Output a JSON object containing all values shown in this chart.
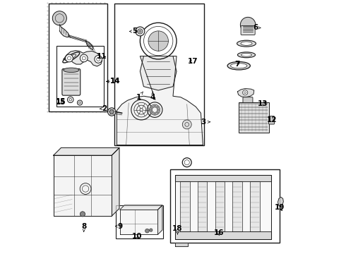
{
  "bg_color": "#ffffff",
  "line_color": "#1a1a1a",
  "dot_color": "#aaaaaa",
  "label_fontsize": 7.5,
  "arrow_lw": 0.5,
  "parts_lw": 0.7,
  "fig_width": 4.9,
  "fig_height": 3.6,
  "dpi": 100,
  "labels": {
    "1": [
      0.365,
      0.618,
      0.382,
      0.64
    ],
    "2": [
      0.23,
      0.572,
      0.21,
      0.572
    ],
    "3": [
      0.62,
      0.52,
      0.648,
      0.52
    ],
    "4": [
      0.42,
      0.618,
      0.42,
      0.64
    ],
    "5": [
      0.35,
      0.878,
      0.326,
      0.878
    ],
    "6": [
      0.826,
      0.892,
      0.848,
      0.892
    ],
    "7": [
      0.754,
      0.748,
      0.77,
      0.762
    ],
    "8": [
      0.148,
      0.108,
      0.148,
      0.085
    ],
    "9": [
      0.292,
      0.108,
      0.27,
      0.108
    ],
    "10": [
      0.358,
      0.068,
      0.37,
      0.05
    ],
    "11": [
      0.218,
      0.778,
      0.244,
      0.778
    ],
    "12": [
      0.89,
      0.528,
      0.912,
      0.528
    ],
    "13": [
      0.854,
      0.592,
      0.876,
      0.606
    ],
    "14": [
      0.248,
      0.668,
      0.272,
      0.668
    ],
    "15": [
      0.075,
      0.618,
      0.058,
      0.605
    ],
    "16": [
      0.682,
      0.082,
      0.682,
      0.062
    ],
    "17": [
      0.578,
      0.76,
      0.555,
      0.76
    ],
    "18": [
      0.518,
      0.098,
      0.518,
      0.075
    ],
    "19": [
      0.92,
      0.182,
      0.938,
      0.162
    ]
  }
}
